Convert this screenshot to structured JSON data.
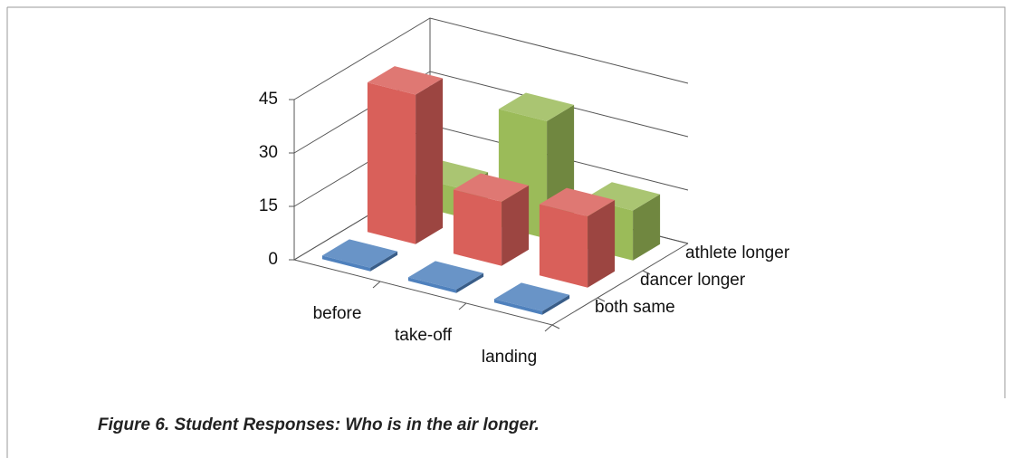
{
  "chart_data": {
    "type": "bar3d",
    "caption": "Figure 6. Student Responses: Who is in the air longer.",
    "categories": [
      "before",
      "take-off",
      "landing"
    ],
    "series": [
      {
        "name": "both same",
        "color": "#4f81bd",
        "values": [
          1,
          1,
          1
        ]
      },
      {
        "name": "dancer longer",
        "color": "#d9605a",
        "values": [
          42,
          18,
          20
        ]
      },
      {
        "name": "athlete longer",
        "color": "#9bbb59",
        "values": [
          8,
          33,
          14
        ]
      }
    ],
    "ylim": [
      0,
      45
    ],
    "yticks": [
      0,
      15,
      30,
      45
    ],
    "grid": true
  }
}
